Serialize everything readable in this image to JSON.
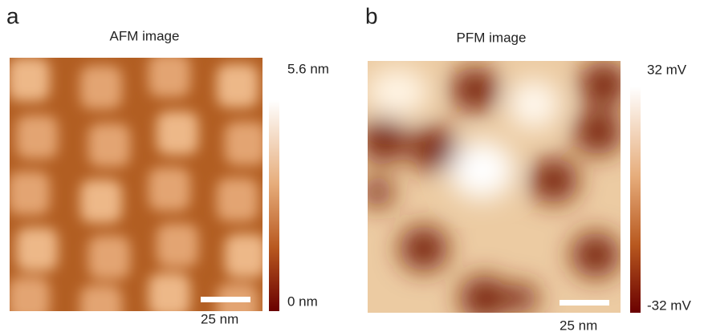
{
  "panels": [
    {
      "label": "a",
      "title": "AFM image",
      "colorbar_max": "5.6 nm",
      "colorbar_min": "0 nm",
      "scale_bar": "25 nm"
    },
    {
      "label": "b",
      "title": "PFM image",
      "colorbar_max": "32 mV",
      "colorbar_min": "-32 mV",
      "scale_bar": "25 nm"
    }
  ]
}
